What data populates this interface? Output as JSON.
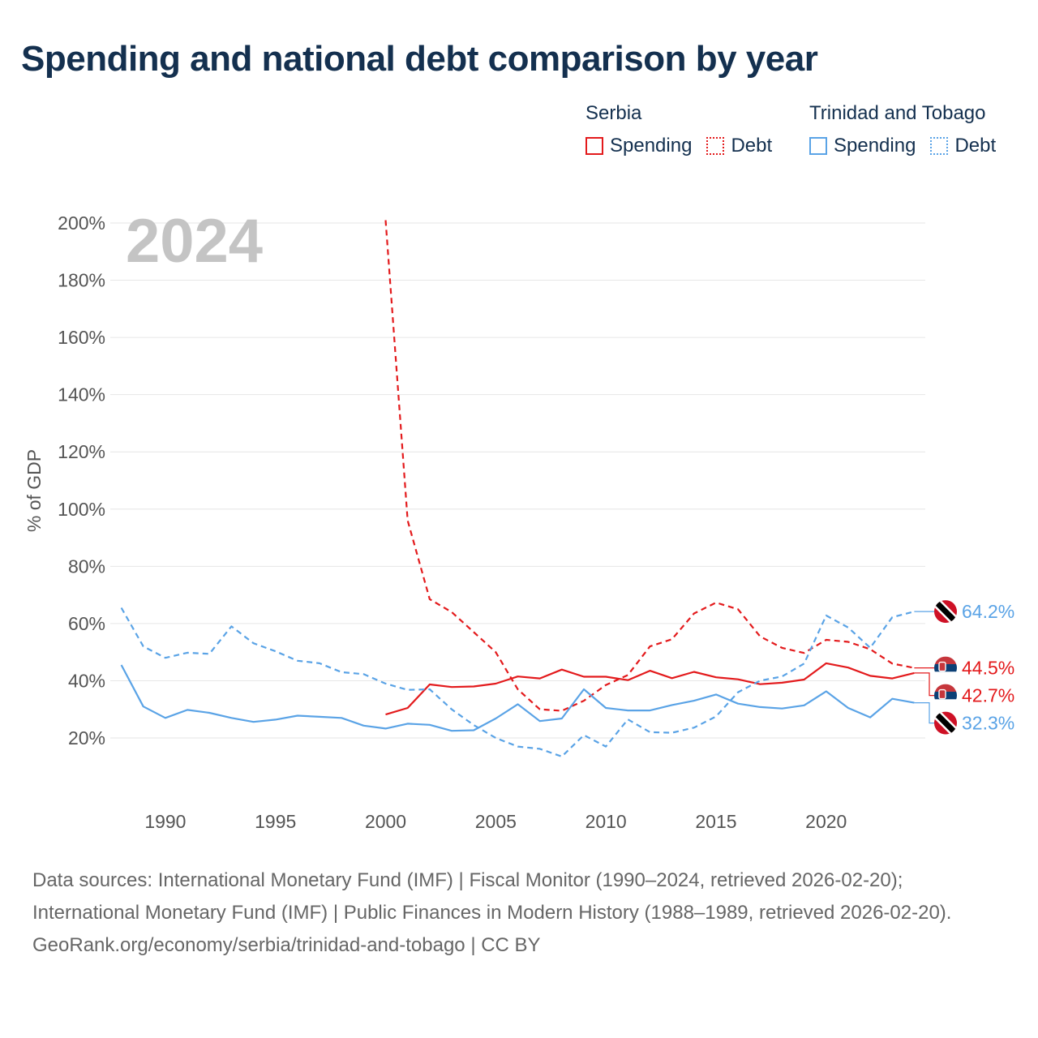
{
  "title": "Spending and national debt comparison by year",
  "legend": {
    "groups": [
      {
        "name": "Serbia",
        "color": "#e31a1c",
        "items": [
          {
            "label": "Spending",
            "style": "solid"
          },
          {
            "label": "Debt",
            "style": "dotted"
          }
        ]
      },
      {
        "name": "Trinidad and Tobago",
        "color": "#5aa3e6",
        "items": [
          {
            "label": "Spending",
            "style": "solid"
          },
          {
            "label": "Debt",
            "style": "dotted"
          }
        ]
      }
    ]
  },
  "footer": {
    "sources": "Data sources: International Monetary Fund (IMF) | Fiscal Monitor (1990–2024, retrieved 2026-02-20); International Monetary Fund (IMF) | Public Finances in Modern History (1988–1989, retrieved 2026-02-20).",
    "credit": "GeoRank.org/economy/serbia/trinidad-and-tobago | CC BY"
  },
  "chart_data": {
    "type": "line",
    "year_label": "2024",
    "ylabel": "% of GDP",
    "xlim": [
      1987.5,
      2024.5
    ],
    "ylim": [
      0,
      200
    ],
    "x_ticks": [
      1990,
      1995,
      2000,
      2005,
      2010,
      2015,
      2020
    ],
    "x_tick_labels": [
      "1990",
      "1995",
      "2000",
      "2005",
      "2010",
      "2015",
      "2020"
    ],
    "y_ticks": [
      20,
      40,
      60,
      80,
      100,
      120,
      140,
      160,
      180,
      200
    ],
    "y_tick_labels": [
      "20%",
      "40%",
      "60%",
      "80%",
      "100%",
      "120%",
      "140%",
      "160%",
      "180%",
      "200%"
    ],
    "grid": true,
    "series": [
      {
        "name": "Serbia Spending",
        "country": "Serbia",
        "kind": "spending",
        "color": "#e31a1c",
        "dashed": false,
        "start": 2000,
        "values": [
          28.2,
          30.5,
          38.7,
          37.8,
          38.0,
          39.0,
          41.5,
          40.8,
          43.9,
          41.4,
          41.4,
          40.2,
          43.5,
          40.9,
          43.1,
          41.2,
          40.5,
          38.8,
          39.3,
          40.4,
          46.1,
          44.6,
          41.7,
          40.8,
          42.7
        ],
        "end_label": "42.7%",
        "flag": "serbia"
      },
      {
        "name": "Serbia Debt",
        "country": "Serbia",
        "kind": "debt",
        "color": "#e31a1c",
        "dashed": true,
        "start": 2000,
        "values": [
          201.0,
          96.0,
          68.5,
          64.0,
          57.0,
          50.0,
          37.0,
          30.0,
          29.5,
          33.0,
          38.5,
          42.0,
          52.0,
          54.5,
          63.5,
          67.3,
          65.0,
          55.5,
          51.5,
          49.7,
          54.3,
          53.6,
          51.0,
          46.0,
          44.5
        ],
        "end_label": "44.5%",
        "flag": "serbia"
      },
      {
        "name": "Trinidad and Tobago Spending",
        "country": "Trinidad and Tobago",
        "kind": "spending",
        "color": "#5aa3e6",
        "dashed": false,
        "start": 1988,
        "values": [
          45.5,
          31.0,
          27.0,
          29.8,
          28.8,
          27.0,
          25.6,
          26.4,
          27.8,
          27.4,
          27.0,
          24.3,
          23.3,
          25.0,
          24.6,
          22.5,
          22.7,
          26.8,
          31.8,
          25.9,
          26.8,
          37.0,
          30.5,
          29.6,
          29.6,
          31.5,
          33.0,
          35.2,
          32.0,
          30.8,
          30.3,
          31.4,
          36.3,
          30.5,
          27.2,
          33.7,
          32.3
        ],
        "end_label": "32.3%",
        "flag": "trinidad"
      },
      {
        "name": "Trinidad and Tobago Debt",
        "country": "Trinidad and Tobago",
        "kind": "debt",
        "color": "#5aa3e6",
        "dashed": true,
        "start": 1988,
        "values": [
          65.5,
          52.0,
          48.0,
          49.8,
          49.4,
          59.0,
          53.1,
          50.3,
          47.0,
          46.1,
          43.0,
          42.3,
          39.0,
          36.8,
          37.0,
          30.0,
          24.5,
          20.0,
          17.0,
          16.2,
          13.5,
          21.0,
          17.0,
          26.5,
          22.0,
          21.8,
          23.6,
          27.5,
          36.0,
          40.0,
          41.5,
          46.0,
          62.8,
          58.6,
          51.5,
          62.2,
          64.2
        ],
        "end_label": "64.2%",
        "flag": "trinidad"
      }
    ]
  }
}
